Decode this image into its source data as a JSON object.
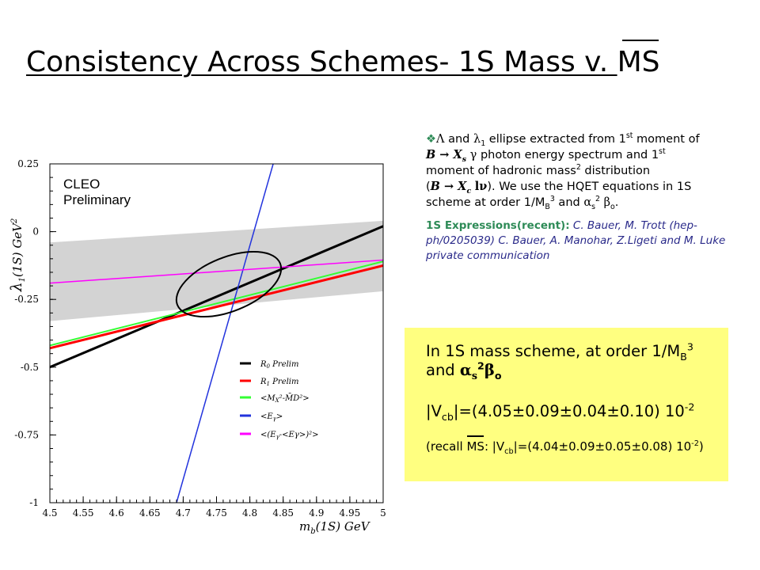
{
  "title": {
    "main": "Consistency Across Schemes- 1S Mass v. ",
    "ms": "MS"
  },
  "bullet": {
    "marker": "❖",
    "p1": " and ",
    "lam1_sym": "λ",
    "lam1_sub": "1",
    "p2": " ellipse extracted from 1",
    "st1": "st",
    "p3": " moment of",
    "p4": " photon energy spectrum and 1",
    "st2": "st",
    "p5": "moment of hadronic mass",
    "sq": "2",
    "p6": " distribution",
    "p7": "(",
    "p8": "). We use the HQET equations in 1S",
    "p9": "scheme at order 1/M",
    "mb_sub": "B",
    "cube": "3",
    "p10": " and ",
    "alpha": "α",
    "s_sub": "s",
    "two": "2",
    "beta": "β",
    "o_sub": "o",
    "dot": ".",
    "Lambda": "Λ",
    "BXs": "B → X",
    "s": "s",
    "gamma": "γ",
    "BXc": "B → X",
    "c": "c",
    "lnu": "lν"
  },
  "refs": {
    "label": "1S Expressions(recent):",
    "text": " C. Bauer, M. Trott (hep-ph/0205039) C. Bauer, A. Manohar, Z.Ligeti and M. Luke private communication"
  },
  "box": {
    "l1a": "In 1S mass scheme, at order 1/M",
    "l1_sub": "B",
    "l1_sup": "3",
    "l2a": "and ",
    "l2_alpha": "α",
    "l2_s": "s",
    "l2_2": "2",
    "l2_beta": "β",
    "l2_o": "o",
    "l3a": "|V",
    "l3_sub": "cb",
    "l3b": "|=(4.05",
    "pm": "±",
    "l3c": "0.09",
    "l3d": "0.04",
    "l3e": "0.10)  10",
    "l3_exp": "-2",
    "l4a": "(recall ",
    "l4_ms": "MS",
    "l4b": ": |V",
    "l4_sub": "cb",
    "l4c": "|=(4.04",
    "l4d": "0.09",
    "l4e": "0.05",
    "l4f": "0.08) 10",
    "l4_exp": "-2",
    "l4g": ")"
  },
  "plot": {
    "cleo1": "CLEO",
    "cleo2": "Preliminary",
    "ylabel_sym": "λ",
    "ylabel_sub": "1",
    "ylabel_rest": "(1S)  GeV",
    "ylabel_sup": "2",
    "xlabel": "m",
    "xlabel_sub": "b",
    "xlabel_rest": "(1S)  GeV",
    "legend": [
      {
        "label": "R",
        "sub": "0",
        "rest": " Prelim",
        "color": "#000000"
      },
      {
        "label": "R",
        "sub": "1",
        "rest": " Prelim",
        "color": "#ff0000"
      },
      {
        "label": "<M",
        "sub": "X",
        "rest": "²-M̄D²>",
        "color": "#00ff00"
      },
      {
        "label": "<E",
        "sub": "γ",
        "rest": ">",
        "color": "#0000ff"
      },
      {
        "label": "<(E",
        "sub": "γ",
        "rest": "-<Eγ>)²>",
        "color": "#ff00ff"
      }
    ]
  },
  "chart_data": {
    "type": "line",
    "xlabel": "m_b(1S)  GeV",
    "ylabel": "λ1(1S)  GeV^2",
    "xlim": [
      4.5,
      5.0
    ],
    "ylim": [
      -1.0,
      0.25
    ],
    "xticks": [
      "4.5",
      "4.55",
      "4.6",
      "4.65",
      "4.7",
      "4.75",
      "4.8",
      "4.85",
      "4.9",
      "4.95",
      "5"
    ],
    "yticks": [
      "0.25",
      "0",
      "-0.25",
      "-0.5",
      "-0.75",
      "-1"
    ],
    "band": {
      "name": "",
      "lower": [
        [
          4.5,
          -0.33
        ],
        [
          5.0,
          -0.22
        ]
      ],
      "upper": [
        [
          4.5,
          -0.04
        ],
        [
          5.0,
          0.04
        ]
      ],
      "color": "#d3d3d3"
    },
    "series": [
      {
        "name": "R0 Prelim",
        "color": "#000000",
        "points": [
          [
            4.5,
            -0.5
          ],
          [
            5.0,
            0.02
          ]
        ]
      },
      {
        "name": "R1 Prelim",
        "color": "#ff0000",
        "points": [
          [
            4.5,
            -0.43
          ],
          [
            5.0,
            -0.125
          ]
        ]
      },
      {
        "name": "<Mx2-MD2>",
        "color": "#00ff00",
        "points": [
          [
            4.5,
            -0.42
          ],
          [
            5.0,
            -0.11
          ]
        ]
      },
      {
        "name": "<Eγ>",
        "color": "#0000ff",
        "points": [
          [
            4.69,
            -1.0
          ],
          [
            4.835,
            0.25
          ]
        ]
      },
      {
        "name": "<(Eγ-<Eγ>)2>",
        "color": "#ff00ff",
        "points": [
          [
            4.5,
            -0.19
          ],
          [
            5.0,
            -0.105
          ]
        ]
      }
    ],
    "ellipse": {
      "center": [
        4.79,
        -0.23
      ],
      "color": "#000000"
    },
    "legend_position": "lower-right"
  }
}
